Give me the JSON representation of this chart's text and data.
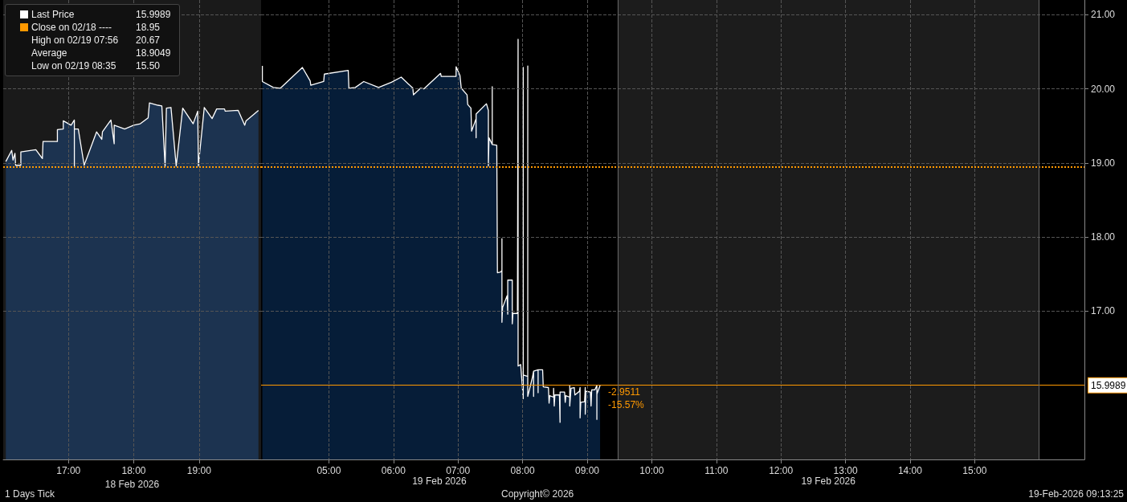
{
  "chart_data": [
    {
      "type": "area",
      "xlabel": "18 Feb 2026",
      "subtitle": "1 Days Tick",
      "series": [
        {
          "name": "Last Price",
          "color": "#ffffff",
          "x": [
            16.04,
            16.13,
            16.15,
            16.18,
            16.19,
            16.27,
            16.27,
            16.5,
            16.6,
            16.61,
            16.7,
            16.83,
            16.83,
            16.92,
            16.92,
            17.04,
            17.09,
            17.09,
            17.09,
            17.15,
            17.24,
            17.43,
            17.51,
            17.52,
            17.65,
            17.7,
            17.7,
            17.86,
            18.0,
            18.1,
            18.22,
            18.24,
            18.37,
            18.43,
            18.48,
            18.5,
            18.57,
            18.65,
            18.75,
            18.91,
            18.98,
            18.99,
            19.08,
            19.2,
            19.27,
            19.39,
            19.4,
            19.6,
            19.7,
            19.72,
            19.91
          ],
          "values": [
            19.02,
            19.17,
            19.04,
            19.13,
            18.97,
            18.97,
            19.15,
            19.18,
            19.06,
            19.29,
            19.29,
            19.29,
            19.45,
            19.46,
            19.57,
            19.51,
            19.58,
            18.95,
            19.46,
            19.46,
            18.97,
            19.42,
            19.32,
            19.42,
            19.58,
            19.26,
            19.51,
            19.46,
            19.51,
            19.53,
            19.61,
            19.81,
            19.78,
            19.77,
            18.95,
            19.74,
            19.75,
            18.96,
            19.74,
            19.53,
            19.7,
            18.96,
            19.75,
            19.6,
            19.73,
            19.73,
            19.7,
            19.71,
            19.51,
            19.57,
            19.71
          ]
        }
      ],
      "xlim": [
        16.0,
        19.95
      ],
      "xticks": [
        {
          "value": 17,
          "label": "17:00"
        },
        {
          "value": 18,
          "label": "18:00"
        },
        {
          "value": 19,
          "label": "19:00"
        }
      ],
      "ylim": [
        15.0,
        21.2
      ],
      "yticks": [
        17,
        18,
        19,
        20,
        21
      ],
      "ref_lines": [
        {
          "axis": "y",
          "value": 18.95,
          "color": "#ff9900",
          "line_style": "dotted"
        }
      ],
      "bands": [
        {
          "axis": "x",
          "from": 16.0,
          "to": 19.95,
          "color": "#1a1a1a"
        }
      ],
      "annotations": [
        "15.9989",
        "Close on 02/18 ----",
        "18.95",
        "High on 02/19 07:56",
        "20.67",
        "Average",
        "18.9049",
        "Low on 02/19 08:35",
        "15.50"
      ],
      "grid": true,
      "tick_labels": "x"
    },
    {
      "type": "area",
      "subtitle": "Copyright© 2026",
      "series": [
        {
          "color": "#ffffff",
          "x": [
            3.97,
            3.97,
            4.14,
            4.25,
            4.59,
            4.71,
            4.72,
            4.92,
            4.93,
            5.3,
            5.31,
            5.41,
            5.54,
            5.77,
            5.97,
            6.12,
            6.3,
            6.31,
            6.42,
            6.47,
            6.73,
            6.74,
            6.97,
            6.97,
            7.03,
            7.05,
            7.14,
            7.15,
            7.2,
            7.21,
            7.28,
            7.28,
            7.28,
            7.44,
            7.47,
            7.47,
            7.48,
            7.53,
            7.53,
            7.53,
            7.6,
            7.61,
            7.66,
            7.68,
            7.68,
            7.68,
            7.69,
            7.76,
            7.77,
            7.77,
            7.84,
            7.84,
            7.85,
            7.92,
            7.93,
            7.93,
            7.97,
            8.01,
            8.01,
            8.01,
            8.08,
            8.08,
            8.08,
            8.15,
            8.17,
            8.17,
            8.17,
            8.24,
            8.24,
            8.24,
            8.31,
            8.32,
            8.4,
            8.41,
            8.42,
            8.48,
            8.48,
            8.49,
            8.5,
            8.57,
            8.58,
            8.58,
            8.65,
            8.66,
            8.67,
            8.73,
            8.73,
            8.73,
            8.75,
            8.8,
            8.81,
            8.88,
            8.89,
            8.89,
            8.9,
            8.96,
            8.97,
            8.97,
            8.98,
            9.05,
            9.06,
            9.07,
            9.12,
            9.15,
            9.15,
            9.15,
            9.2
          ],
          "values": [
            20.31,
            20.1,
            20.02,
            20.01,
            20.29,
            20.11,
            20.05,
            20.1,
            20.2,
            20.25,
            20.01,
            20.02,
            20.1,
            20.02,
            20.09,
            20.16,
            20.01,
            19.92,
            20.01,
            20.0,
            20.21,
            20.17,
            20.17,
            20.3,
            20.18,
            20.01,
            19.92,
            19.79,
            19.74,
            19.43,
            19.6,
            19.34,
            19.66,
            19.8,
            19.71,
            18.96,
            19.34,
            19.25,
            20.03,
            19.25,
            19.24,
            17.52,
            17.53,
            17.55,
            17.98,
            16.85,
            17.05,
            17.21,
            16.96,
            17.42,
            17.42,
            16.83,
            16.97,
            16.97,
            20.67,
            16.26,
            16.28,
            15.82,
            20.29,
            16.14,
            16.12,
            20.31,
            15.85,
            16.1,
            16.19,
            15.85,
            16.19,
            16.21,
            15.9,
            16.21,
            16.21,
            15.98,
            15.97,
            15.76,
            15.86,
            15.84,
            15.96,
            15.72,
            15.87,
            15.87,
            15.5,
            15.91,
            15.91,
            15.77,
            15.86,
            15.84,
            16.0,
            15.72,
            15.96,
            15.97,
            15.87,
            15.92,
            15.97,
            15.56,
            15.77,
            15.78,
            15.97,
            15.61,
            15.92,
            15.91,
            15.72,
            15.94,
            15.94,
            16.0,
            15.54,
            15.88,
            16.0
          ]
        }
      ],
      "xlim": [
        3.95,
        16.7
      ],
      "xticks": [
        {
          "value": 5,
          "label": "05:00"
        },
        {
          "value": 6,
          "label": "06:00"
        },
        {
          "value": 7,
          "label": "07:00"
        },
        {
          "value": 8,
          "label": "08:00"
        },
        {
          "value": 9,
          "label": "09:00"
        },
        {
          "value": 10,
          "label": "10:00"
        },
        {
          "value": 11,
          "label": "11:00"
        },
        {
          "value": 12,
          "label": "12:00"
        },
        {
          "value": 13,
          "label": "13:00"
        },
        {
          "value": 14,
          "label": "14:00"
        },
        {
          "value": 15,
          "label": "15:00"
        }
      ],
      "ylim": [
        15.0,
        21.2
      ],
      "yticks": [
        {
          "value": 17,
          "label": "17.00"
        },
        {
          "value": 18,
          "label": "18.00"
        },
        {
          "value": 19,
          "label": "19.00"
        },
        {
          "value": 20,
          "label": "20.00"
        },
        {
          "value": 21,
          "label": "21.00"
        }
      ],
      "ref_lines": [
        {
          "axis": "y",
          "value": 18.95,
          "color": "#ff9900",
          "line_style": "dotted"
        },
        {
          "axis": "y",
          "value": 15.9989,
          "label": "15.9989",
          "color": "#ff9900",
          "line_style": "solid"
        },
        {
          "axis": "x",
          "value": 9.47,
          "color": "#666666",
          "line_style": "solid"
        },
        {
          "axis": "x",
          "value": 16.0,
          "color": "#666666",
          "line_style": "solid"
        }
      ],
      "bands": [
        {
          "axis": "x",
          "from": 9.47,
          "to": 16.0,
          "color": "#1c1c1c"
        }
      ],
      "annotations": [
        "-2.9511",
        "-15.57%",
        "19 Feb 2026",
        "19 Feb 2026",
        "19-Feb-2026 09:13:25"
      ],
      "grid": true
    }
  ]
}
